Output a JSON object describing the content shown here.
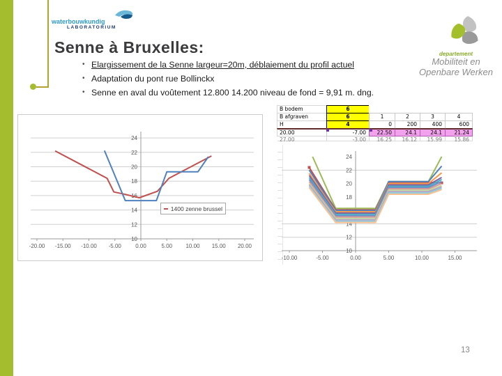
{
  "page": {
    "number": "13"
  },
  "colors": {
    "accent_green": "#a4bd2f",
    "deco_line": "#b0a42f",
    "title_color": "#3b3b3d",
    "chart_blue": "#4f81bd",
    "chart_red": "#c0504d",
    "table_yellow": "#ffff00",
    "table_pink": "#f2a2ec"
  },
  "logo_left": {
    "name": "waterbouwkundig",
    "sub": "LABORATORIUM"
  },
  "logo_right": {
    "dept": "departement",
    "line1": "Mobiliteit en",
    "line2": "Openbare Werken"
  },
  "title": "Senne à Bruxelles:",
  "bullets": [
    {
      "text": "Elargissement de la Senne largeur=20m, déblaiement du profil actuel",
      "underline": true
    },
    {
      "text": "Adaptation du pont rue Bollinckx",
      "underline": false
    },
    {
      "text": "Senne en aval du voûtement 12.800 14.200  niveau de fond = 9,91 m. dng.",
      "underline": false
    }
  ],
  "table": {
    "rows": [
      {
        "cells": [
          "B bodem",
          "6",
          "",
          "",
          "",
          ""
        ]
      },
      {
        "cells": [
          "B afgraven",
          "6",
          "1",
          "2",
          "3",
          "4"
        ]
      },
      {
        "cells": [
          "H",
          "4",
          "0",
          "200",
          "400",
          "600"
        ]
      },
      {
        "cells": [
          "20.00",
          "-7.00",
          "22.50",
          "24.1",
          "24.1",
          "21.24"
        ]
      },
      {
        "cells": [
          "27.00",
          "-3.00",
          "16.25",
          "16.12",
          "15.99",
          "15.86"
        ]
      }
    ]
  },
  "chart_data": [
    {
      "type": "line",
      "title": "",
      "xlabel": "",
      "ylabel": "",
      "xlim": [
        -21.5,
        21.5
      ],
      "ylim": [
        10,
        25
      ],
      "grid": "horizontal",
      "x_ticks": [
        "-20.00",
        "-15.00",
        "-10.00",
        "-5.00",
        "0.00",
        "5.00",
        "10.00",
        "15.00",
        "20.00"
      ],
      "x_tick_values": [
        -20,
        -15,
        -10,
        -5,
        0,
        5,
        10,
        15,
        20
      ],
      "y_ticks": [
        10,
        12,
        14,
        16,
        18,
        20,
        22,
        24
      ],
      "legend": {
        "position": "center-right",
        "entries": [
          {
            "label": "1400 zenne brussel",
            "color": "#c0504d"
          }
        ]
      },
      "series": [
        {
          "name": "1400 zenne brussel",
          "color": "#c0504d",
          "points": [
            [
              -16.5,
              22.2
            ],
            [
              -6.5,
              18.4
            ],
            [
              -5.2,
              16.5
            ],
            [
              -3.2,
              16.2
            ],
            [
              -0.3,
              15.7
            ],
            [
              3.2,
              16.6
            ],
            [
              5.4,
              18.4
            ],
            [
              13.6,
              21.5
            ]
          ]
        },
        {
          "name": "",
          "color": "#4f81bd",
          "points": [
            [
              -7,
              22.25
            ],
            [
              -3,
              15.3
            ],
            [
              3,
              15.3
            ],
            [
              5,
              19.3
            ],
            [
              11,
              19.3
            ],
            [
              13,
              21.4
            ]
          ]
        }
      ]
    },
    {
      "type": "line",
      "title": "",
      "xlabel": "",
      "ylabel": "",
      "xlim": [
        -11.5,
        16.5
      ],
      "ylim": [
        10,
        25
      ],
      "grid": "horizontal",
      "x_ticks": [
        "-10.00",
        "-5.00",
        "0.00",
        "5.00",
        "10.00",
        "15.00"
      ],
      "x_tick_values": [
        -10,
        -5,
        0,
        5,
        10,
        15
      ],
      "y_ticks": [
        10,
        12,
        14,
        16,
        18,
        20,
        22,
        24
      ],
      "gridlines_y": [
        22,
        14,
        12
      ],
      "series": [
        {
          "name": "",
          "color": "#9bbb59",
          "points": [
            [
              -6.5,
              24.0
            ],
            [
              -3,
              16.3
            ],
            [
              3,
              16.3
            ],
            [
              5,
              20.3
            ],
            [
              11,
              20.3
            ],
            [
              13,
              24.0
            ]
          ]
        },
        {
          "name": "",
          "color": "#c0504d",
          "marker": true,
          "points": [
            [
              -7,
              22.4
            ],
            [
              -3,
              16.1
            ],
            [
              3,
              16.1
            ],
            [
              5,
              20.2
            ],
            [
              11,
              20.2
            ],
            [
              13,
              20.1
            ]
          ]
        },
        {
          "name": "",
          "color": "#4f81bd",
          "points": [
            [
              -7,
              22.0
            ],
            [
              -3,
              16.0
            ],
            [
              3,
              16.0
            ],
            [
              5,
              20.3
            ],
            [
              11,
              20.3
            ],
            [
              13,
              22.6
            ]
          ]
        },
        {
          "name": "",
          "color": "#f79646",
          "points": [
            [
              -7,
              21.5
            ],
            [
              -3,
              15.8
            ],
            [
              3,
              15.8
            ],
            [
              5,
              20.0
            ],
            [
              11,
              20.0
            ],
            [
              13,
              21.6
            ]
          ]
        },
        {
          "name": "",
          "color": "#8064a2",
          "points": [
            [
              -7,
              21.2
            ],
            [
              -3,
              15.6
            ],
            [
              3,
              15.6
            ],
            [
              5,
              19.8
            ],
            [
              11,
              19.8
            ],
            [
              13,
              20.9
            ]
          ]
        },
        {
          "name": "",
          "color": "#4bacc6",
          "points": [
            [
              -7,
              20.9
            ],
            [
              -3,
              15.4
            ],
            [
              3,
              15.4
            ],
            [
              5,
              19.6
            ],
            [
              11,
              19.6
            ],
            [
              13,
              20.6
            ]
          ]
        },
        {
          "name": "",
          "color": "#6a8fc7",
          "points": [
            [
              -7,
              20.6
            ],
            [
              -3,
              15.2
            ],
            [
              3,
              15.2
            ],
            [
              5,
              19.4
            ],
            [
              11,
              19.4
            ],
            [
              13,
              20.3
            ]
          ]
        },
        {
          "name": "",
          "color": "#d99694",
          "points": [
            [
              -7,
              20.3
            ],
            [
              -3,
              15.0
            ],
            [
              3,
              15.0
            ],
            [
              5,
              19.2
            ],
            [
              11,
              19.2
            ],
            [
              13,
              20.0
            ]
          ]
        },
        {
          "name": "",
          "color": "#c3d69b",
          "points": [
            [
              -7,
              20.0
            ],
            [
              -3,
              14.8
            ],
            [
              3,
              14.8
            ],
            [
              5,
              19.0
            ],
            [
              11,
              19.0
            ],
            [
              13,
              19.7
            ]
          ]
        },
        {
          "name": "",
          "color": "#b3a2c7",
          "points": [
            [
              -7,
              19.8
            ],
            [
              -3,
              14.6
            ],
            [
              3,
              14.6
            ],
            [
              5,
              18.8
            ],
            [
              11,
              18.8
            ],
            [
              13,
              19.5
            ]
          ]
        },
        {
          "name": "",
          "color": "#92cddc",
          "points": [
            [
              -7,
              19.6
            ],
            [
              -3,
              14.4
            ],
            [
              3,
              14.4
            ],
            [
              5,
              18.6
            ],
            [
              11,
              18.6
            ],
            [
              13,
              19.3
            ]
          ]
        },
        {
          "name": "",
          "color": "#fac090",
          "points": [
            [
              -7,
              19.4
            ],
            [
              -3,
              14.2
            ],
            [
              3,
              14.2
            ],
            [
              5,
              18.4
            ],
            [
              11,
              18.4
            ],
            [
              13,
              19.1
            ]
          ]
        }
      ]
    }
  ]
}
